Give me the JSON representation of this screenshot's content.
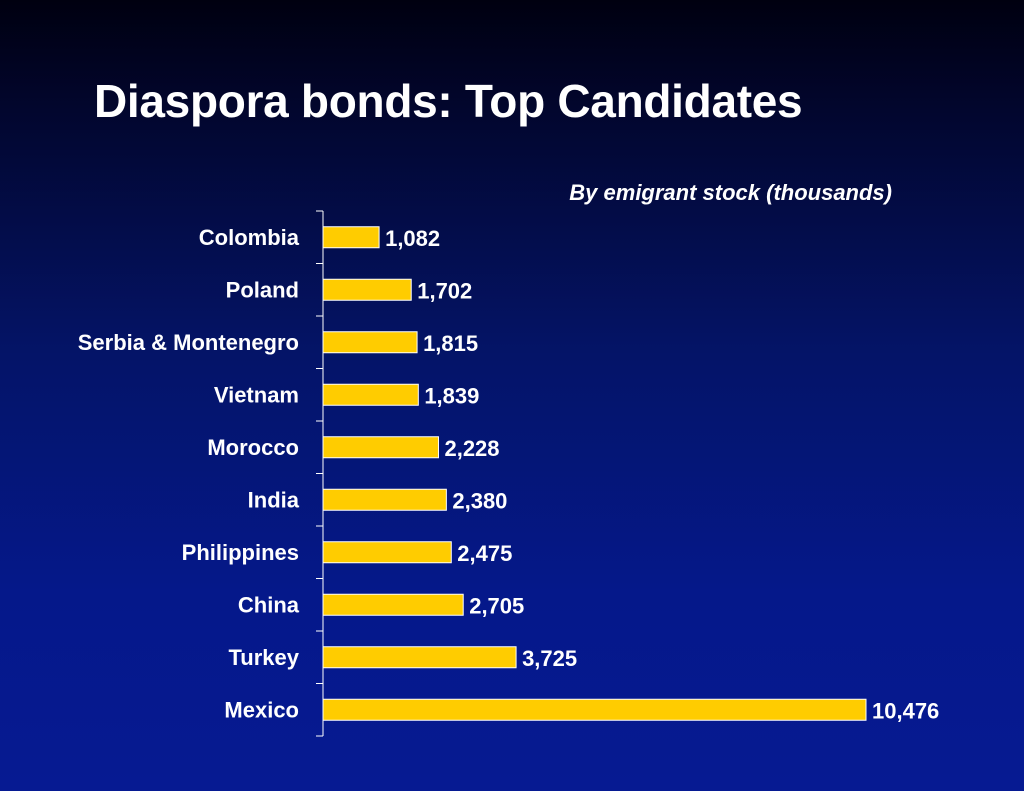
{
  "slide": {
    "title": "Diaspora bonds: Top Candidates"
  },
  "chart_data": {
    "type": "bar",
    "orientation": "horizontal",
    "title": "By emigrant stock (thousands)",
    "categories": [
      "Colombia",
      "Poland",
      "Serbia & Montenegro",
      "Vietnam",
      "Morocco",
      "India",
      "Philippines",
      "China",
      "Turkey",
      "Mexico"
    ],
    "values": [
      1082,
      1702,
      1815,
      1839,
      2228,
      2380,
      2475,
      2705,
      3725,
      10476
    ],
    "value_labels": [
      "1,082",
      "1,702",
      "1,815",
      "1,839",
      "2,228",
      "2,380",
      "2,475",
      "2,705",
      "3,725",
      "10,476"
    ],
    "xlim": [
      0,
      10476
    ],
    "grid": false,
    "legend": "none",
    "colors": {
      "bar": "#ffcc00",
      "bar_edge": "#ffffff",
      "axis": "#ffffff",
      "text": "#ffffff"
    }
  }
}
